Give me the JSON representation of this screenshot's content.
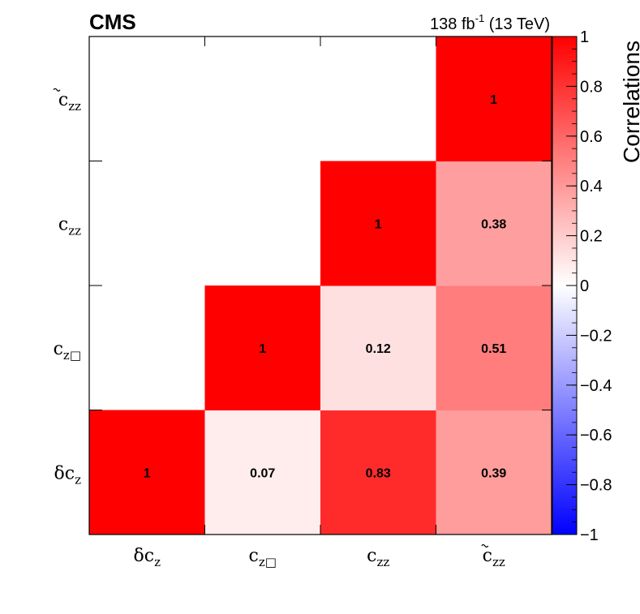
{
  "header": {
    "experiment": "CMS",
    "lumi_value": "138 fb",
    "lumi_exponent": "-1",
    "energy": " (13 TeV)"
  },
  "chart_data": {
    "type": "heatmap",
    "parameters": [
      {
        "base": "δc",
        "sub": "z",
        "tilde": false
      },
      {
        "base": "c",
        "sub": "z□",
        "tilde": false
      },
      {
        "base": "c",
        "sub": "zz",
        "tilde": false
      },
      {
        "base": "c",
        "sub": "zz",
        "tilde": true
      }
    ],
    "x_order": [
      0,
      1,
      2,
      3
    ],
    "y_order_bottom_to_top": [
      0,
      1,
      2,
      3
    ],
    "cells": [
      {
        "x": 0,
        "y": 0,
        "value": 1,
        "label": "1"
      },
      {
        "x": 1,
        "y": 0,
        "value": 0.07,
        "label": "0.07"
      },
      {
        "x": 2,
        "y": 0,
        "value": 0.83,
        "label": "0.83"
      },
      {
        "x": 3,
        "y": 0,
        "value": 0.39,
        "label": "0.39"
      },
      {
        "x": 1,
        "y": 1,
        "value": 1,
        "label": "1"
      },
      {
        "x": 2,
        "y": 1,
        "value": 0.12,
        "label": "0.12"
      },
      {
        "x": 3,
        "y": 1,
        "value": 0.51,
        "label": "0.51"
      },
      {
        "x": 2,
        "y": 2,
        "value": 1,
        "label": "1"
      },
      {
        "x": 3,
        "y": 2,
        "value": 0.38,
        "label": "0.38"
      },
      {
        "x": 3,
        "y": 3,
        "value": 1,
        "label": "1"
      }
    ],
    "colorbar": {
      "title": "Correlations",
      "range": [
        -1,
        1
      ],
      "ticks": [
        "1",
        "0.8",
        "0.6",
        "0.4",
        "0.2",
        "0",
        "−0.2",
        "−0.4",
        "−0.6",
        "−0.8",
        "−1"
      ],
      "tick_values": [
        1,
        0.8,
        0.6,
        0.4,
        0.2,
        0,
        -0.2,
        -0.4,
        -0.6,
        -0.8,
        -1
      ],
      "color_max": "#ff0000",
      "color_zero": "#ffffff",
      "color_min": "#0000ff"
    }
  }
}
